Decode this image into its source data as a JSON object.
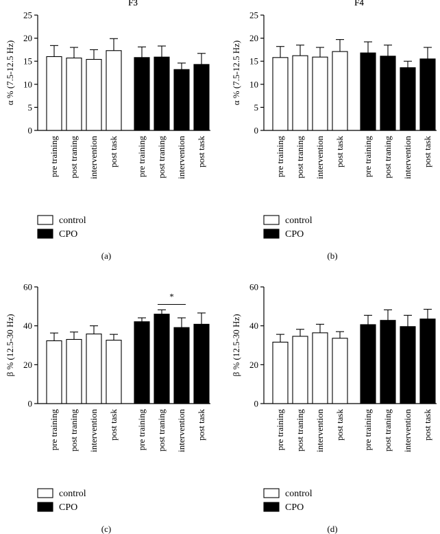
{
  "chart_data": [
    {
      "type": "bar",
      "panel_label": "(a)",
      "title": "F3",
      "ylabel": "α % (7.5-12.5 Hz)",
      "ylim": [
        0,
        25
      ],
      "yticks": [
        0,
        5,
        10,
        15,
        20,
        25
      ],
      "categories": [
        "pre training",
        "post traning",
        "intervention",
        "post task"
      ],
      "series": [
        {
          "name": "control",
          "color": "#ffffff",
          "values": [
            16.0,
            15.7,
            15.4,
            17.3
          ],
          "errors": [
            2.4,
            2.3,
            2.1,
            2.6
          ]
        },
        {
          "name": "CPO",
          "color": "#000000",
          "values": [
            15.8,
            15.9,
            13.2,
            14.3
          ],
          "errors": [
            2.3,
            2.4,
            1.4,
            2.4
          ]
        }
      ],
      "annotations": []
    },
    {
      "type": "bar",
      "panel_label": "(b)",
      "title": "F4",
      "ylabel": "α % (7.5-12.5 Hz)",
      "ylim": [
        0,
        25
      ],
      "yticks": [
        0,
        5,
        10,
        15,
        20,
        25
      ],
      "categories": [
        "pre training",
        "post traning",
        "intervention",
        "post task"
      ],
      "series": [
        {
          "name": "control",
          "color": "#ffffff",
          "values": [
            15.8,
            16.2,
            15.9,
            17.1
          ],
          "errors": [
            2.4,
            2.3,
            2.1,
            2.6
          ]
        },
        {
          "name": "CPO",
          "color": "#000000",
          "values": [
            16.8,
            16.1,
            13.6,
            15.5
          ],
          "errors": [
            2.4,
            2.4,
            1.4,
            2.5
          ]
        }
      ],
      "annotations": []
    },
    {
      "type": "bar",
      "panel_label": "(c)",
      "title": "F3",
      "ylabel": "β % (12.5-30 Hz)",
      "ylim": [
        0,
        60
      ],
      "yticks": [
        0,
        20,
        40,
        60
      ],
      "categories": [
        "pre training",
        "post traning",
        "intervention",
        "post task"
      ],
      "series": [
        {
          "name": "control",
          "color": "#ffffff",
          "values": [
            32.3,
            33.0,
            35.8,
            32.6
          ],
          "errors": [
            4.0,
            3.8,
            4.2,
            3.0
          ]
        },
        {
          "name": "CPO",
          "color": "#000000",
          "values": [
            42.1,
            46.0,
            39.1,
            40.8
          ],
          "errors": [
            2.0,
            2.2,
            5.0,
            5.8
          ]
        }
      ],
      "annotations": [
        {
          "text": "*",
          "series": "CPO",
          "from": 1,
          "to": 2,
          "y": 51
        }
      ]
    },
    {
      "type": "bar",
      "panel_label": "(d)",
      "title": "F4",
      "ylabel": "β % (12.5-30 Hz)",
      "ylim": [
        0,
        60
      ],
      "yticks": [
        0,
        20,
        40,
        60
      ],
      "categories": [
        "pre training",
        "post traning",
        "intervention",
        "post task"
      ],
      "series": [
        {
          "name": "control",
          "color": "#ffffff",
          "values": [
            31.6,
            34.6,
            36.4,
            33.6
          ],
          "errors": [
            4.0,
            3.6,
            4.4,
            3.4
          ]
        },
        {
          "name": "CPO",
          "color": "#000000",
          "values": [
            40.6,
            42.8,
            39.6,
            43.5
          ],
          "errors": [
            4.8,
            5.4,
            5.8,
            5.0
          ]
        }
      ],
      "annotations": []
    }
  ]
}
